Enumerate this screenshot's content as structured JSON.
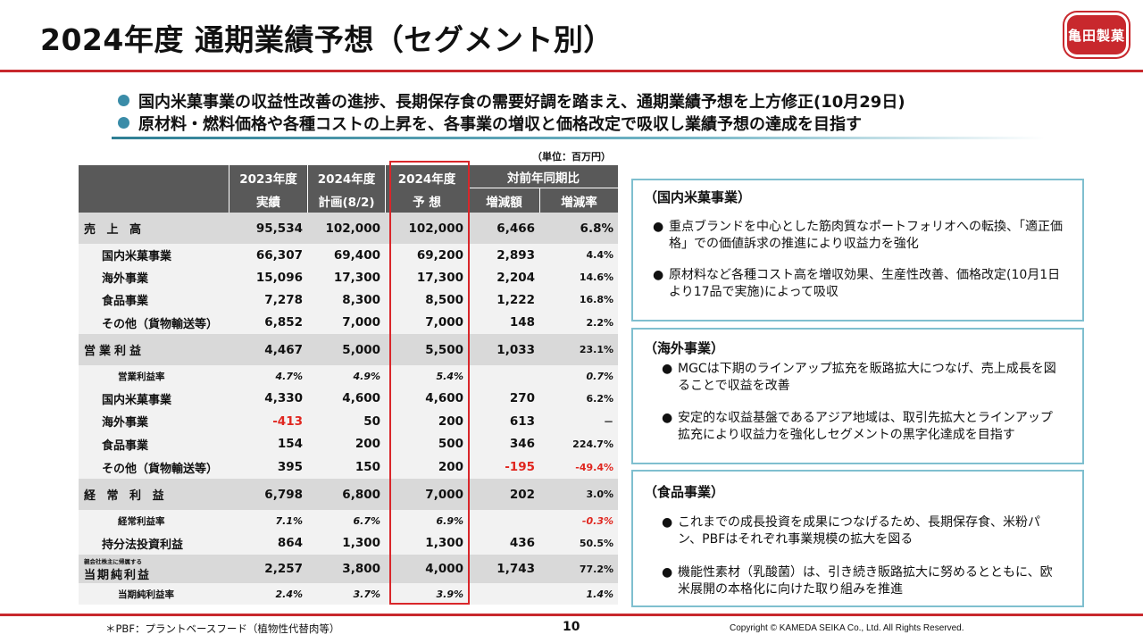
{
  "title": "2024年度 通期業績予想（セグメント別）",
  "logo_text": "亀田製菓",
  "bullets": [
    "国内米菓事業の収益性改善の進捗、長期保存食の需要好調を踏まえ、通期業績予想を上方修正(10月29日)",
    "原材料・燃料価格や各種コストの上昇を、各事業の増収と価格改定で吸収し業績予想の達成を目指す"
  ],
  "unit": "（単位：百万円）",
  "table": {
    "headers": {
      "fy2023_l1": "2023年度",
      "fy2023_l2": "実績",
      "plan_l1": "2024年度",
      "plan_l2": "計画(8/2)",
      "fcst_l1": "2024年度",
      "fcst_l2": "予 想",
      "yoy": "対前年同期比",
      "yoy_amt": "増減額",
      "yoy_rate": "増減率"
    },
    "rows": [
      {
        "label": "売 上 高",
        "v1": "95,534",
        "v2": "102,000",
        "v3": "102,000",
        "v4": "6,466",
        "v5": "6.8%"
      },
      {
        "label": "国内米菓事業",
        "v1": "66,307",
        "v2": "69,400",
        "v3": "69,200",
        "v4": "2,893",
        "v5": "4.4%"
      },
      {
        "label": "海外事業",
        "v1": "15,096",
        "v2": "17,300",
        "v3": "17,300",
        "v4": "2,204",
        "v5": "14.6%"
      },
      {
        "label": "食品事業",
        "v1": "7,278",
        "v2": "8,300",
        "v3": "8,500",
        "v4": "1,222",
        "v5": "16.8%"
      },
      {
        "label": "その他（貨物輸送等）",
        "v1": "6,852",
        "v2": "7,000",
        "v3": "7,000",
        "v4": "148",
        "v5": "2.2%"
      },
      {
        "label": "営業利益",
        "v1": "4,467",
        "v2": "5,000",
        "v3": "5,500",
        "v4": "1,033",
        "v5": "23.1%"
      },
      {
        "label": "営業利益率",
        "v1": "4.7%",
        "v2": "4.9%",
        "v3": "5.4%",
        "v4": "",
        "v5": "0.7%"
      },
      {
        "label": "国内米菓事業",
        "v1": "4,330",
        "v2": "4,600",
        "v3": "4,600",
        "v4": "270",
        "v5": "6.2%"
      },
      {
        "label": "海外事業",
        "v1": "-413",
        "v2": "50",
        "v3": "200",
        "v4": "613",
        "v5": "－"
      },
      {
        "label": "食品事業",
        "v1": "154",
        "v2": "200",
        "v3": "500",
        "v4": "346",
        "v5": "224.7%"
      },
      {
        "label": "その他（貨物輸送等）",
        "v1": "395",
        "v2": "150",
        "v3": "200",
        "v4": "-195",
        "v5": "-49.4%"
      },
      {
        "label": "経 常 利 益",
        "v1": "6,798",
        "v2": "6,800",
        "v3": "7,000",
        "v4": "202",
        "v5": "3.0%"
      },
      {
        "label": "経常利益率",
        "v1": "7.1%",
        "v2": "6.7%",
        "v3": "6.9%",
        "v4": "",
        "v5": "-0.3%"
      },
      {
        "label": "持分法投資利益",
        "v1": "864",
        "v2": "1,300",
        "v3": "1,300",
        "v4": "436",
        "v5": "50.5%"
      },
      {
        "label_small": "親会社株主に帰属する",
        "label": "当期純利益",
        "v1": "2,257",
        "v2": "3,800",
        "v3": "4,000",
        "v4": "1,743",
        "v5": "77.2%"
      },
      {
        "label": "当期純利益率",
        "v1": "2.4%",
        "v2": "3.7%",
        "v3": "3.9%",
        "v4": "",
        "v5": "1.4%"
      }
    ]
  },
  "panels": [
    {
      "heading": "（国内米菓事業）",
      "items": [
        "重点ブランドを中心とした筋肉質なポートフォリオへの転換、「適正価格」での価値訴求の推進により収益力を強化",
        "原材料など各種コスト高を増収効果、生産性改善、価格改定(10月1日より17品で実施)によって吸収"
      ]
    },
    {
      "heading": "（海外事業）",
      "items": [
        "MGCは下期のラインアップ拡充を販路拡大につなげ、売上成長を図ることで収益を改善",
        "安定的な収益基盤であるアジア地域は、取引先拡大とラインアップ拡充により収益力を強化しセグメントの黒字化達成を目指す"
      ]
    },
    {
      "heading": "（食品事業）",
      "items": [
        "これまでの成長投資を成果につなげるため、長期保存食、米粉パン、PBFはそれぞれ事業規模の拡大を図る",
        "機能性素材（乳酸菌）は、引き続き販路拡大に努めるとともに、欧米展開の本格化に向けた取り組みを推進"
      ]
    }
  ],
  "bullet_symbol": "●",
  "footer": {
    "note": "＊PBF：プラントベースフード（植物性代替肉等）",
    "page": "10",
    "copyright": "Copyright ©  KAMEDA SEIKA Co., Ltd. All Rights Reserved."
  }
}
